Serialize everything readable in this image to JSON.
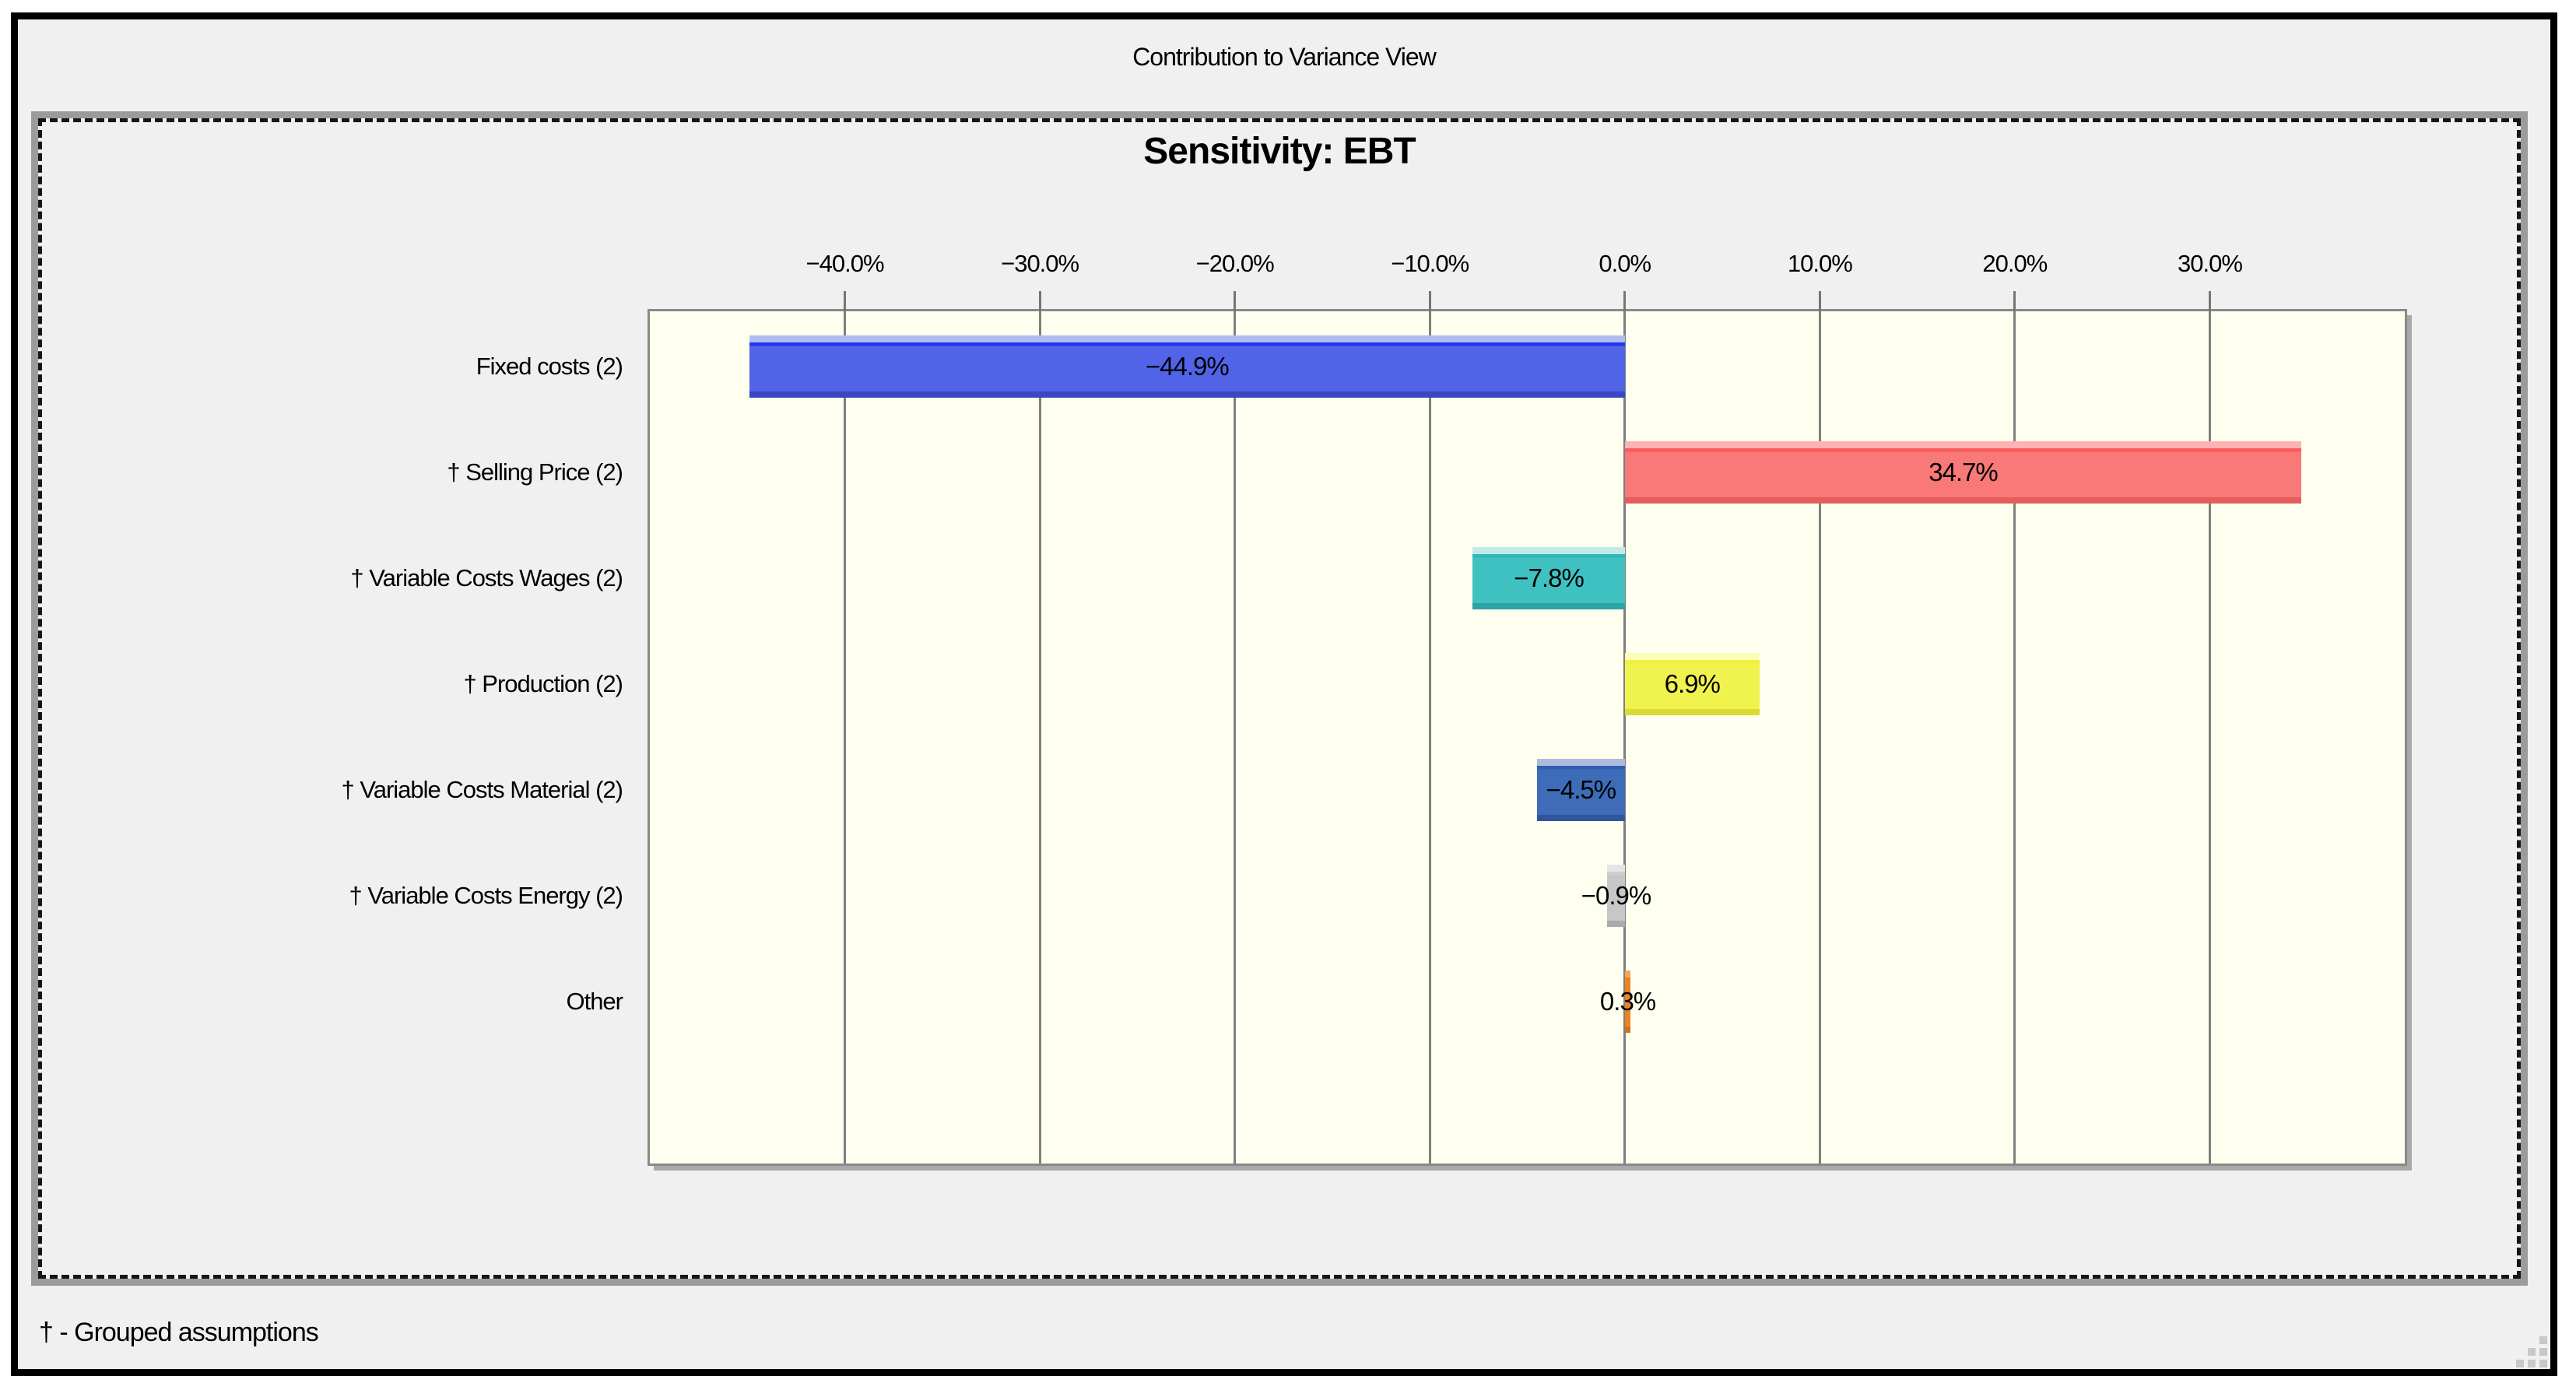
{
  "window": {
    "title": "Contribution to Variance View",
    "footer_note": "† - Grouped assumptions"
  },
  "chart_data": {
    "type": "bar",
    "orientation": "horizontal",
    "title": "Sensitivity: EBT",
    "categories": [
      "Fixed costs (2)",
      "† Selling Price (2)",
      "† Variable Costs Wages (2)",
      "† Production (2)",
      "† Variable Costs Material (2)",
      "† Variable Costs Energy (2)",
      "Other"
    ],
    "values": [
      -44.9,
      34.7,
      -7.8,
      6.9,
      -4.5,
      -0.9,
      0.3
    ],
    "value_labels": [
      "−44.9%",
      "34.7%",
      "−7.8%",
      "6.9%",
      "−4.5%",
      "−0.9%",
      "0.3%"
    ],
    "bar_styles": [
      {
        "light": "#b3bcf0",
        "bright": "#2334f2",
        "main": "#5164e8",
        "dark": "#3a47c3"
      },
      {
        "light": "#fdb3b3",
        "bright": "#fa5c5c",
        "main": "#f97878",
        "dark": "#e55c5c"
      },
      {
        "light": "#c3eae7",
        "bright": "#2fb7b7",
        "main": "#3fc1c1",
        "dark": "#2da4a4"
      },
      {
        "light": "#fbfcb6",
        "bright": "#eef23c",
        "main": "#f0f34e",
        "dark": "#d7db33"
      },
      {
        "light": "#aebcdb",
        "bright": "#2f5fb3",
        "main": "#3e6cb8",
        "dark": "#30559b"
      },
      {
        "light": "#e5e5e5",
        "bright": "#cfcfcf",
        "main": "#c7c7c7",
        "dark": "#aaaaaa"
      },
      {
        "light": "#f5a360",
        "bright": "#ee7d1d",
        "main": "#ef8322",
        "dark": "#d97012"
      }
    ],
    "xlim": [
      -50,
      40
    ],
    "ticks": [
      {
        "value": -40,
        "label": "−40.0%"
      },
      {
        "value": -30,
        "label": "−30.0%"
      },
      {
        "value": -20,
        "label": "−20.0%"
      },
      {
        "value": -10,
        "label": "−10.0%"
      },
      {
        "value": 0,
        "label": "0.0%"
      },
      {
        "value": 10,
        "label": "10.0%"
      },
      {
        "value": 20,
        "label": "20.0%"
      },
      {
        "value": 30,
        "label": "30.0%"
      }
    ],
    "grid": true,
    "legend": "none",
    "plot_bg": "#fffff0",
    "grid_color": "#7f7f7f"
  }
}
